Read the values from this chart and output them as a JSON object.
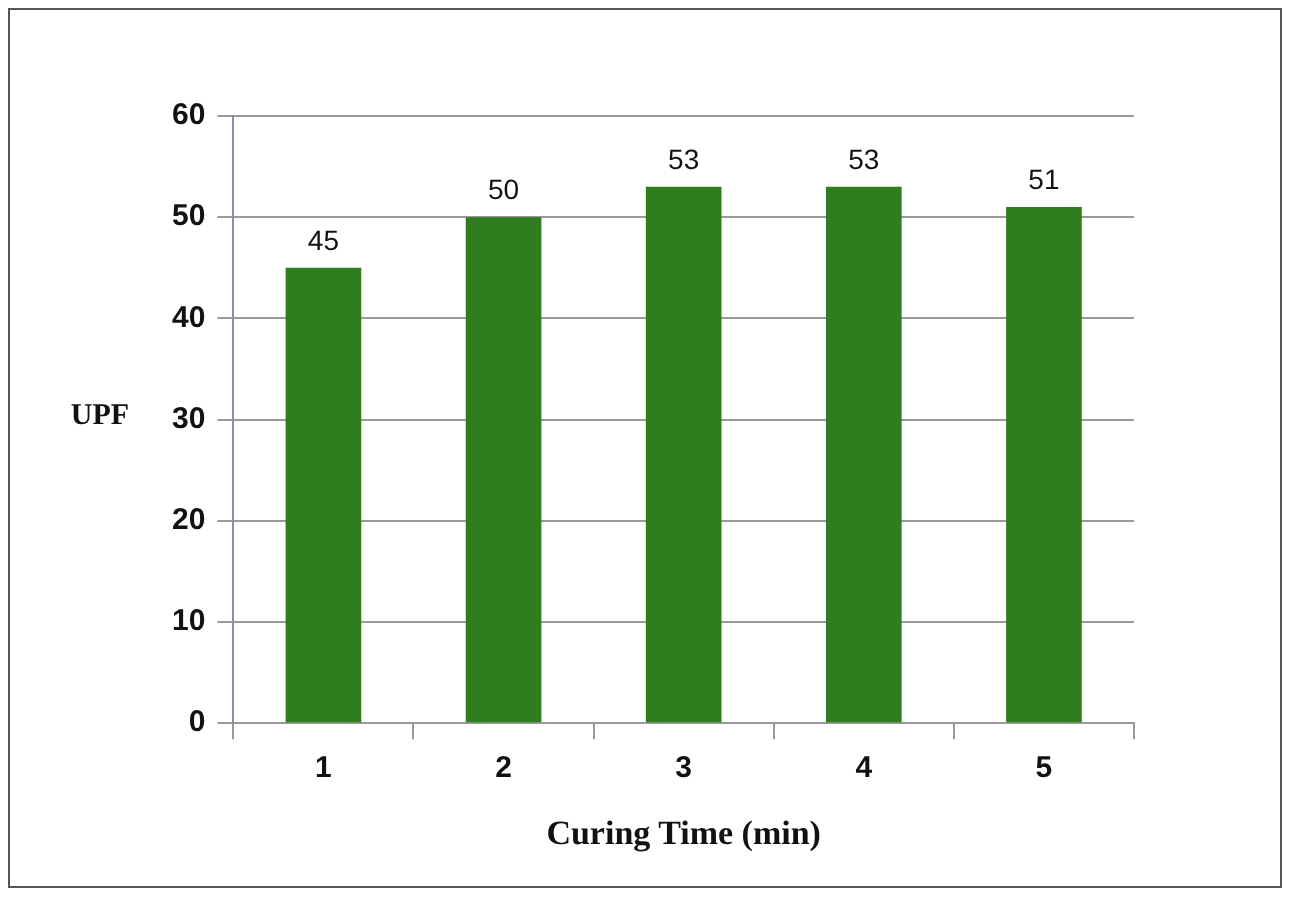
{
  "chart_data": {
    "type": "bar",
    "xlabel": "Curing Time (min)",
    "ylabel": "UPF",
    "categories": [
      "1",
      "2",
      "3",
      "4",
      "5"
    ],
    "values": [
      45,
      50,
      53,
      53,
      51
    ],
    "color": "#2e7d1e",
    "ylim": [
      0,
      60
    ],
    "yticks": [
      0,
      10,
      20,
      30,
      40,
      50,
      60
    ],
    "grid": "y",
    "data_labels": true
  }
}
